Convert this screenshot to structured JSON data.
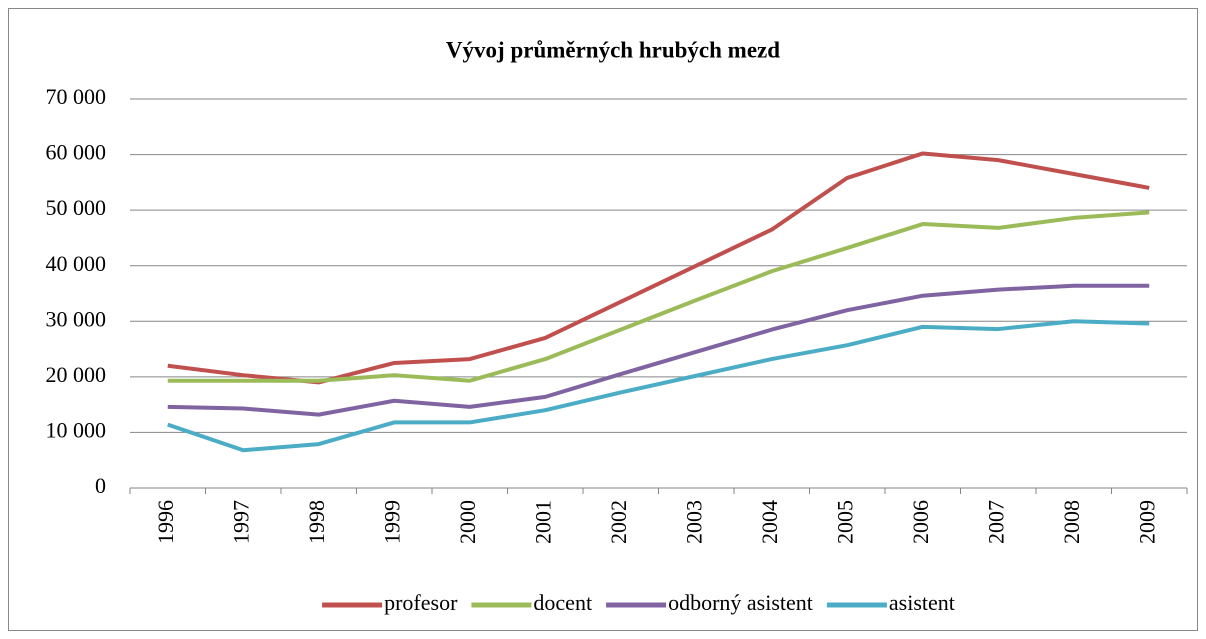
{
  "chart_data": {
    "type": "line",
    "title": "Vývoj průměrných hrubých mezd",
    "categories": [
      "1996",
      "1997",
      "1998",
      "1999",
      "2000",
      "2001",
      "2002",
      "2003",
      "2004",
      "2005",
      "2006",
      "2007",
      "2008",
      "2009"
    ],
    "series": [
      {
        "name": "profesor",
        "color": "#c0504d",
        "values": [
          22000,
          20300,
          19000,
          22500,
          23200,
          27000,
          33500,
          40000,
          46500,
          55800,
          60200,
          59000,
          56500,
          54000
        ]
      },
      {
        "name": "docent",
        "color": "#9bbb59",
        "values": [
          19300,
          19300,
          19300,
          20300,
          19300,
          23200,
          28500,
          33800,
          39000,
          43200,
          47500,
          46800,
          48600,
          49600
        ]
      },
      {
        "name": "odborný asistent",
        "color": "#8064a2",
        "values": [
          14600,
          14300,
          13200,
          15700,
          14600,
          16400,
          20500,
          24500,
          28500,
          32000,
          34600,
          35700,
          36400,
          36400
        ]
      },
      {
        "name": "asistent",
        "color": "#4bacc6",
        "values": [
          11400,
          6800,
          7900,
          11800,
          11800,
          14000,
          17200,
          20200,
          23200,
          25700,
          29000,
          28600,
          30000,
          29600
        ]
      }
    ],
    "ylim": [
      0,
      70000
    ],
    "yticks": [
      0,
      {
        "value": 10000,
        "label": "10 000"
      },
      {
        "value": 20000,
        "label": "20 000"
      },
      {
        "value": 30000,
        "label": "30 000"
      },
      {
        "value": 40000,
        "label": "40 000"
      },
      {
        "value": 50000,
        "label": "50 000"
      },
      {
        "value": 60000,
        "label": "60 000"
      },
      {
        "value": 70000,
        "label": "70 000"
      }
    ],
    "grid": true,
    "legend": "bottom"
  }
}
